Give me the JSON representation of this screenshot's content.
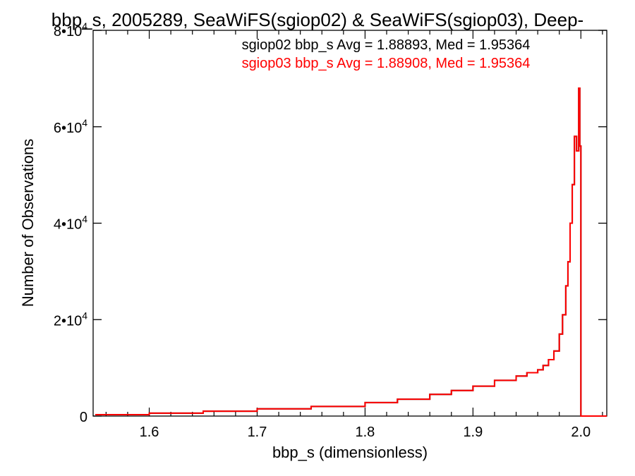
{
  "colors": {
    "background": "#ffffff",
    "axis": "#000000",
    "series_sgiop02": "#000000",
    "series_sgiop03": "#ff0000"
  },
  "chart_data": {
    "type": "line",
    "line_shape": "step",
    "title": "bbp_s, 2005289, SeaWiFS(sgiop02) & SeaWiFS(sgiop03), Deep-",
    "xlabel": "bbp_s (dimensionless)",
    "ylabel": "Number of Observations",
    "xlim": [
      1.548,
      2.024
    ],
    "ylim": [
      0,
      80000
    ],
    "grid": false,
    "x_ticks": [
      {
        "value": 1.6,
        "label": "1.6"
      },
      {
        "value": 1.7,
        "label": "1.7"
      },
      {
        "value": 1.8,
        "label": "1.8"
      },
      {
        "value": 1.9,
        "label": "1.9"
      },
      {
        "value": 2.0,
        "label": "2.0"
      }
    ],
    "y_ticks": [
      {
        "value": 0,
        "base": "0",
        "exp": ""
      },
      {
        "value": 20000,
        "base": "2•10",
        "exp": "4"
      },
      {
        "value": 40000,
        "base": "4•10",
        "exp": "4"
      },
      {
        "value": 60000,
        "base": "6•10",
        "exp": "4"
      },
      {
        "value": 80000,
        "base": "8•10",
        "exp": "4"
      }
    ],
    "annotations": [
      {
        "text": "sgiop02 bbp_s Avg = 1.88893, Med = 1.95364",
        "color": "#000000"
      },
      {
        "text": "sgiop03 bbp_s Avg = 1.88908, Med = 1.95364",
        "color": "#ff0000"
      }
    ],
    "series": [
      {
        "name": "sgiop02",
        "color": "#000000",
        "x": [
          1.55,
          1.6,
          1.65,
          1.7,
          1.75,
          1.8,
          1.83,
          1.86,
          1.88,
          1.9,
          1.92,
          1.94,
          1.95,
          1.96,
          1.965,
          1.97,
          1.975,
          1.98,
          1.983,
          1.986,
          1.988,
          1.99,
          1.992,
          1.994,
          1.996,
          1.998,
          1.999,
          2.0,
          2.002,
          2.024
        ],
        "values": [
          300,
          600,
          1000,
          1500,
          2000,
          2800,
          3500,
          4500,
          5300,
          6200,
          7400,
          8300,
          9000,
          9600,
          10500,
          11700,
          13500,
          17000,
          21000,
          27000,
          32000,
          40000,
          48000,
          58000,
          55000,
          68000,
          56000,
          0,
          0,
          0
        ]
      },
      {
        "name": "sgiop03",
        "color": "#ff0000",
        "x": [
          1.55,
          1.6,
          1.65,
          1.7,
          1.75,
          1.8,
          1.83,
          1.86,
          1.88,
          1.9,
          1.92,
          1.94,
          1.95,
          1.96,
          1.965,
          1.97,
          1.975,
          1.98,
          1.983,
          1.986,
          1.988,
          1.99,
          1.992,
          1.994,
          1.996,
          1.998,
          1.999,
          2.0,
          2.002,
          2.024
        ],
        "values": [
          300,
          600,
          1000,
          1500,
          2000,
          2800,
          3500,
          4500,
          5300,
          6200,
          7400,
          8300,
          9000,
          9600,
          10500,
          11700,
          13500,
          17000,
          21000,
          27000,
          32000,
          40000,
          48000,
          58000,
          55000,
          68000,
          56000,
          0,
          0,
          0
        ]
      }
    ]
  }
}
